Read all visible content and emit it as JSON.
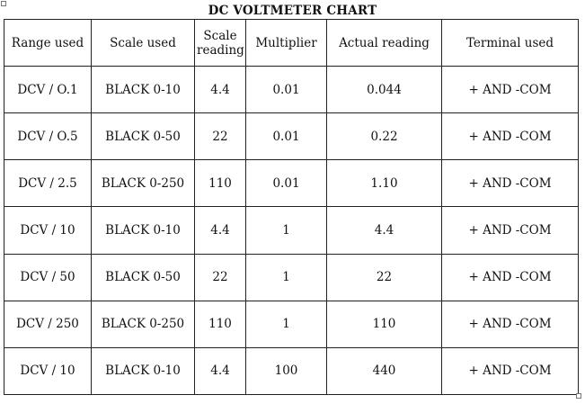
{
  "title": "DC VOLTMETER CHART",
  "headers": [
    "Range used",
    "Scale used",
    "Scale reading",
    "Multiplier",
    "Actual reading",
    "Terminal used"
  ],
  "rows": [
    [
      "DCV / O.1",
      "BLACK 0-10",
      "4.4",
      "0.01",
      "0.044",
      "+ AND -COM"
    ],
    [
      "DCV / O.5",
      "BLACK 0-50",
      "22",
      "0.01",
      "0.22",
      "+ AND -COM"
    ],
    [
      "DCV / 2.5",
      "BLACK 0-250",
      "110",
      "0.01",
      "1.10",
      "+ AND -COM"
    ],
    [
      "DCV / 10",
      "BLACK 0-10",
      "4.4",
      "1",
      "4.4",
      "+ AND -COM"
    ],
    [
      "DCV / 50",
      "BLACK 0-50",
      "22",
      "1",
      "22",
      "+ AND -COM"
    ],
    [
      "DCV / 250",
      "BLACK 0-250",
      "110",
      "1",
      "110",
      "+ AND -COM"
    ],
    [
      "DCV / 10",
      "BLACK 0-10",
      "4.4",
      "100",
      "440",
      "+ AND -COM"
    ]
  ]
}
